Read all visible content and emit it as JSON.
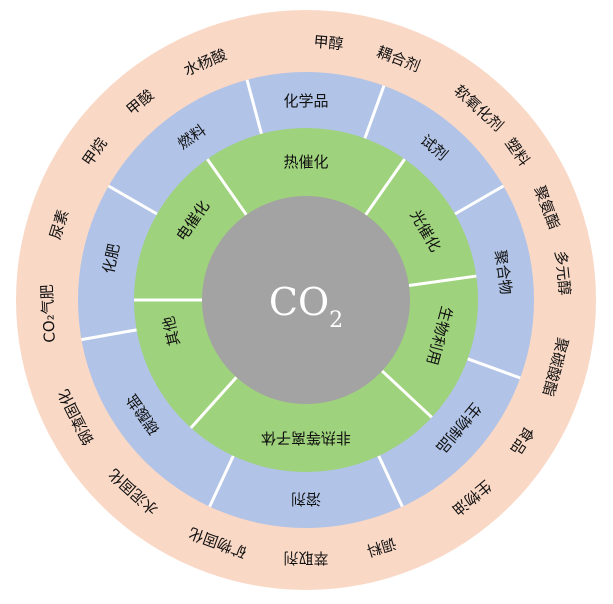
{
  "colors": {
    "outer_ring": "#f9d8c6",
    "middle_ring": "#b1c3e6",
    "inner_ring": "#9fd27c",
    "core": "#a3a3a3",
    "divider": "#ffffff"
  },
  "core": {
    "main": "CO",
    "sub": "2"
  },
  "inner_sectors": [
    {
      "label": "热催化",
      "center_angle": 0
    },
    {
      "label": "光催化",
      "center_angle": 60
    },
    {
      "label": "生物利用",
      "center_angle": 105
    },
    {
      "label": "非热等离子体",
      "center_angle": 180
    },
    {
      "label": "其他",
      "center_angle": 257
    },
    {
      "label": "电催化",
      "center_angle": 305
    }
  ],
  "inner_dividers": [
    35,
    82,
    133,
    222,
    270,
    325
  ],
  "middle_sectors": [
    {
      "label": "化学品",
      "center_angle": 0
    },
    {
      "label": "试剂",
      "center_angle": 40
    },
    {
      "label": "聚合物",
      "center_angle": 82
    },
    {
      "label": "生物制品",
      "center_angle": 130
    },
    {
      "label": "溶剂",
      "center_angle": 180
    },
    {
      "label": "碳酸盐",
      "center_angle": 235
    },
    {
      "label": "化肥",
      "center_angle": 282
    },
    {
      "label": "燃料",
      "center_angle": 325
    }
  ],
  "middle_dividers": [
    20,
    60,
    110,
    155,
    205,
    260,
    300,
    345
  ],
  "outer_labels": [
    {
      "label": "甲醇",
      "center_angle": 5
    },
    {
      "label": "耦合剂",
      "center_angle": 21
    },
    {
      "label": "软氧化剂",
      "center_angle": 42
    },
    {
      "label": "塑料",
      "center_angle": 55
    },
    {
      "label": "聚氨酯",
      "center_angle": 69
    },
    {
      "label": "多元醇",
      "center_angle": 84
    },
    {
      "label": "聚碳酸酯",
      "center_angle": 105
    },
    {
      "label": "食品",
      "center_angle": 123
    },
    {
      "label": "生物油",
      "center_angle": 140
    },
    {
      "label": "调料",
      "center_angle": 163
    },
    {
      "label": "萃取剂",
      "center_angle": 180
    },
    {
      "label": "矿物固化",
      "center_angle": 200
    },
    {
      "label": "水泥固化",
      "center_angle": 222
    },
    {
      "label": "钢渣固化",
      "center_angle": 243
    },
    {
      "label": "CO₂气肥",
      "center_angle": 267
    },
    {
      "label": "尿素",
      "center_angle": 287
    },
    {
      "label": "甲烷",
      "center_angle": 305
    },
    {
      "label": "甲酸",
      "center_angle": 320
    },
    {
      "label": "水杨酸",
      "center_angle": 337
    }
  ]
}
